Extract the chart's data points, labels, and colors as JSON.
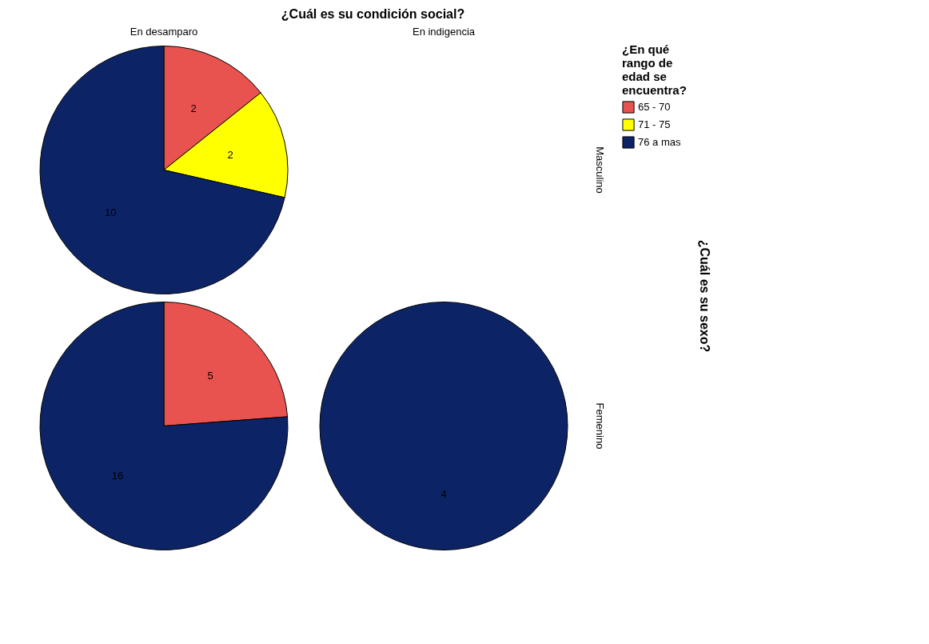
{
  "chart_data": [
    {
      "type": "pie",
      "title": "¿Cuál es su condición social?",
      "xlabel": "En desamparo",
      "ylabel": "Masculino",
      "legend_title": "¿En qué rango de edad se encuentra?",
      "legend": "right",
      "annotations": [
        "¿Cuál es su sexo?"
      ],
      "categories": [
        "65 - 70",
        "71 - 75",
        "76 a mas"
      ],
      "values": [
        2,
        2,
        10
      ],
      "colors": [
        "#e8534f",
        "#ffff00",
        "#0c2466"
      ],
      "data_labels": true
    },
    {
      "type": "pie",
      "ylabel": "Femenino",
      "categories": [
        null,
        null
      ],
      "values": [
        5,
        16
      ],
      "colors": [
        "#e8534f",
        "#0c2466"
      ],
      "data_labels": true
    },
    {
      "type": "pie",
      "xlabel": "En indigencia",
      "categories": [
        null
      ],
      "values": [
        4
      ],
      "colors": [
        "#0c2466"
      ],
      "data_labels": true
    }
  ]
}
